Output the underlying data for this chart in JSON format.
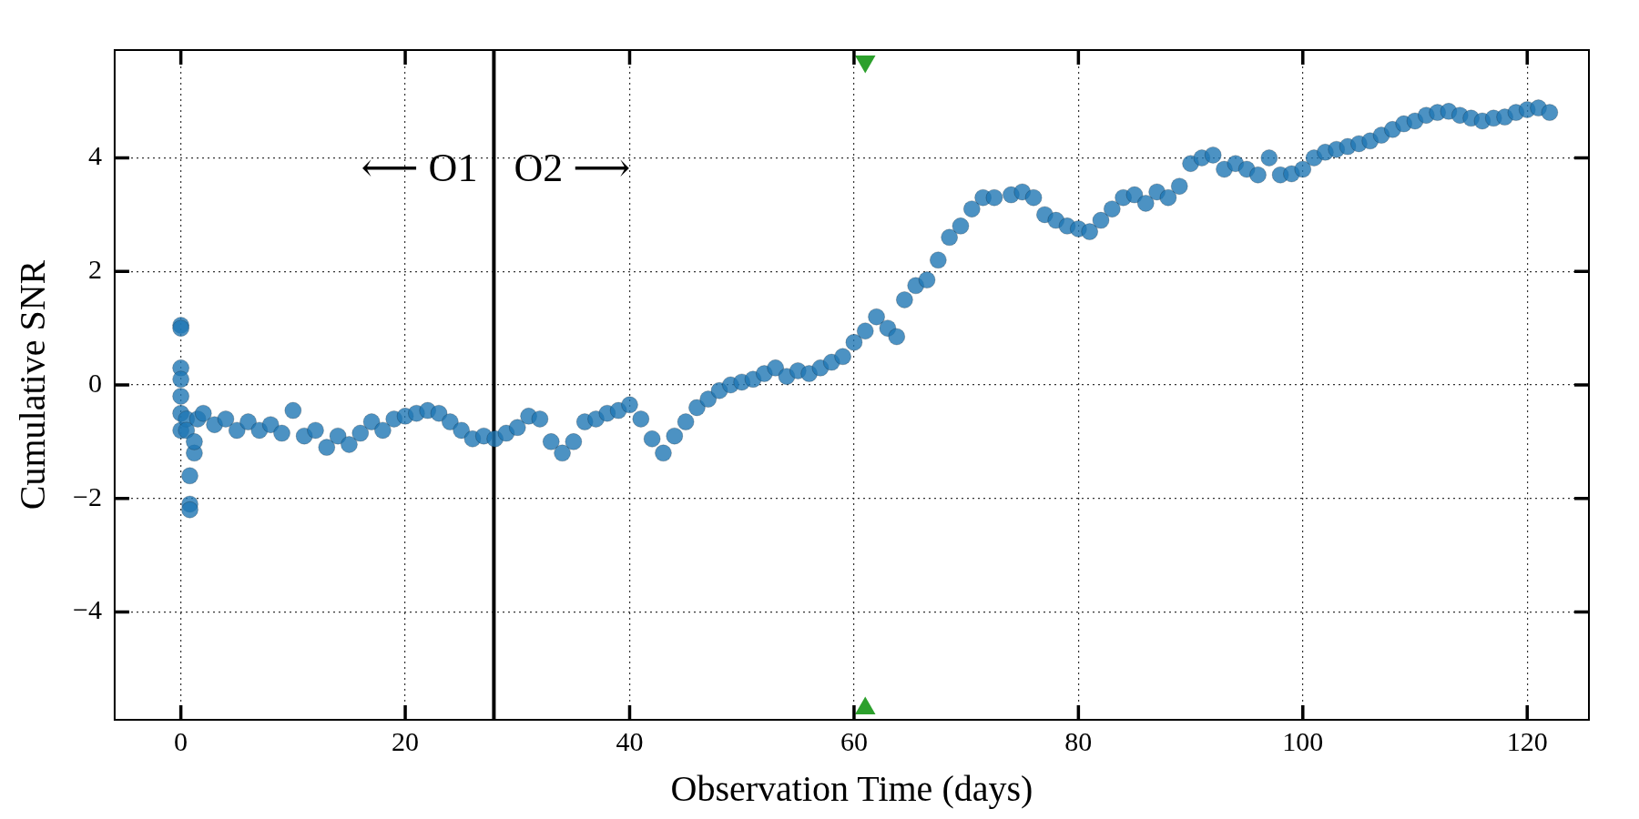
{
  "chart_data": {
    "type": "scatter",
    "xlabel": "Observation Time (days)",
    "ylabel": "Cumulative SNR",
    "xlim": [
      -5.9,
      125.5
    ],
    "ylim": [
      -5.9,
      5.9
    ],
    "xticks": [
      0,
      20,
      40,
      60,
      80,
      100,
      120
    ],
    "yticks": [
      {
        "value": -4,
        "label": "−4"
      },
      {
        "value": -2,
        "label": "−2"
      },
      0,
      2,
      4
    ],
    "grid": true,
    "legend": false,
    "marker": "circle",
    "series": [
      {
        "color": "#1f77b4",
        "x": [
          0,
          0,
          0,
          0,
          0,
          0,
          0,
          0.5,
          0.5,
          0.8,
          0.8,
          0.8,
          1.2,
          1.2,
          1.5,
          2,
          3,
          4,
          5,
          6,
          7,
          8,
          9,
          10,
          11,
          12,
          13,
          14,
          15,
          16,
          17,
          18,
          19,
          20,
          21,
          22,
          23,
          24,
          25,
          26,
          27,
          28,
          29,
          30,
          31,
          32,
          33,
          34,
          35,
          36,
          37,
          38,
          39,
          40,
          41,
          42,
          43,
          44,
          45,
          46,
          47,
          48,
          49,
          50,
          51,
          52,
          53,
          54,
          55,
          56,
          57,
          58,
          59,
          60,
          61,
          62,
          63,
          63.8,
          64.5,
          65.5,
          66.5,
          67.5,
          68.5,
          69.5,
          70.5,
          71.5,
          72.5,
          74,
          75,
          76,
          77,
          78,
          79,
          80,
          81,
          82,
          83,
          84,
          85,
          86,
          87,
          88,
          89,
          90,
          91,
          92,
          93,
          94,
          95,
          96,
          97,
          98,
          99,
          100,
          101,
          102,
          103,
          104,
          105,
          106,
          107,
          108,
          109,
          110,
          111,
          112,
          113,
          114,
          115,
          116,
          117,
          118,
          119,
          120,
          121,
          122
        ],
        "values": [
          1.05,
          1.0,
          0.3,
          0.1,
          -0.2,
          -0.5,
          -0.8,
          -0.6,
          -0.8,
          -1.6,
          -2.1,
          -2.2,
          -1.2,
          -1.0,
          -0.6,
          -0.5,
          -0.7,
          -0.6,
          -0.8,
          -0.65,
          -0.8,
          -0.7,
          -0.85,
          -0.45,
          -0.9,
          -0.8,
          -1.1,
          -0.9,
          -1.05,
          -0.85,
          -0.65,
          -0.8,
          -0.6,
          -0.55,
          -0.5,
          -0.45,
          -0.5,
          -0.65,
          -0.8,
          -0.95,
          -0.9,
          -0.95,
          -0.85,
          -0.75,
          -0.55,
          -0.6,
          -1.0,
          -1.2,
          -1.0,
          -0.65,
          -0.6,
          -0.5,
          -0.45,
          -0.35,
          -0.6,
          -0.95,
          -1.2,
          -0.9,
          -0.65,
          -0.4,
          -0.25,
          -0.1,
          0.0,
          0.05,
          0.1,
          0.2,
          0.3,
          0.15,
          0.25,
          0.2,
          0.3,
          0.4,
          0.5,
          0.75,
          0.95,
          1.2,
          1.0,
          0.85,
          1.5,
          1.75,
          1.85,
          2.2,
          2.6,
          2.8,
          3.1,
          3.3,
          3.3,
          3.35,
          3.4,
          3.3,
          3.0,
          2.9,
          2.8,
          2.75,
          2.7,
          2.9,
          3.1,
          3.3,
          3.35,
          3.2,
          3.4,
          3.3,
          3.5,
          3.9,
          4.0,
          4.05,
          3.8,
          3.9,
          3.8,
          3.7,
          4.0,
          3.7,
          3.72,
          3.8,
          4.0,
          4.1,
          4.15,
          4.2,
          4.25,
          4.3,
          4.4,
          4.5,
          4.6,
          4.65,
          4.75,
          4.8,
          4.82,
          4.75,
          4.7,
          4.65,
          4.7,
          4.72,
          4.8,
          4.85,
          4.88,
          4.8
        ]
      },
      {
        "color": "#2ca02c",
        "marker": "triangle",
        "x": [
          61,
          61
        ],
        "values": [
          5.7,
          -5.7
        ]
      }
    ],
    "ref_lines": [
      {
        "axis": "x",
        "value": 27.9,
        "color": "#000000"
      }
    ],
    "annotations": [
      "⟵ O1",
      "O2 ⟶"
    ]
  }
}
